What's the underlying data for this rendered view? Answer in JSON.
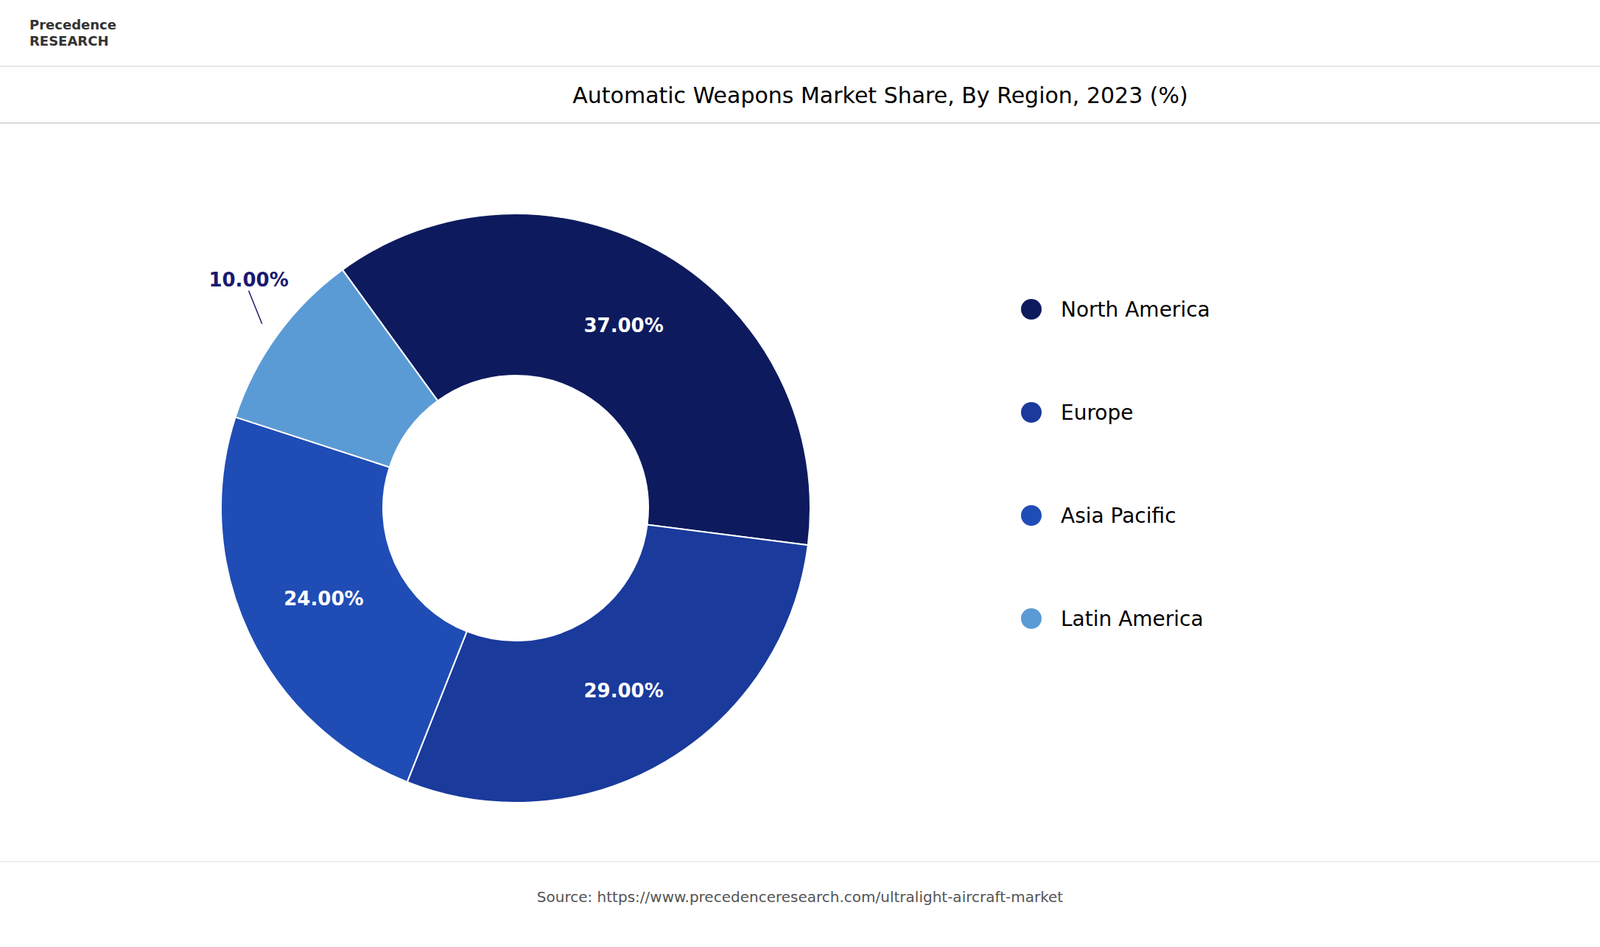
{
  "chart_data": {
    "type": "pie",
    "title": "Automatic Weapons Market Share, By Region, 2023 (%)",
    "categories": [
      "North America",
      "Europe",
      "Asia Pacific",
      "Latin America"
    ],
    "values": [
      37.0,
      29.0,
      24.0,
      10.0
    ],
    "value_labels": [
      "37.00%",
      "29.00%",
      "24.00%",
      "10.00%"
    ],
    "colors": [
      "#0d1b5e",
      "#1a3a9c",
      "#1f4db5",
      "#5b9bd5"
    ],
    "data_labels": true,
    "legend": "right",
    "annotations": [
      "Precedence\nRESEARCH",
      "Source: https://www.precedenceresearch.com/ultralight-aircraft-market"
    ]
  }
}
